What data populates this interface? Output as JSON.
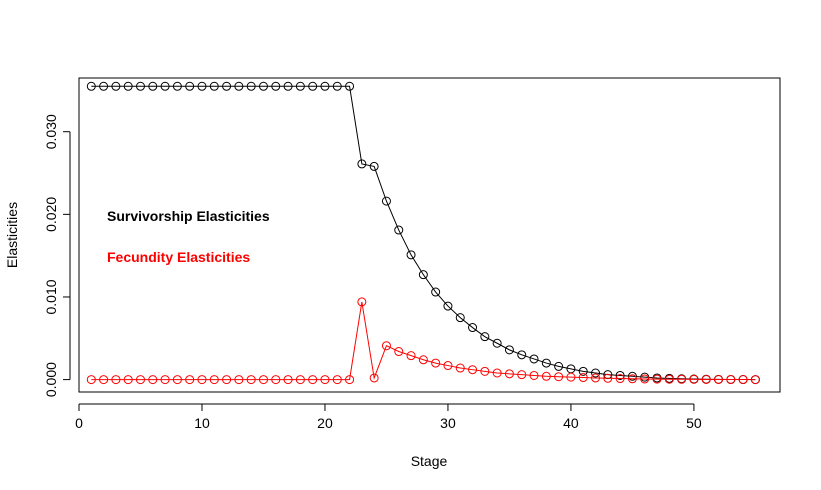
{
  "chart_data": {
    "type": "line",
    "title": "",
    "xlabel": "Stage",
    "ylabel": "Elasticities",
    "xlim": [
      0,
      57
    ],
    "ylim": [
      -0.0015,
      0.0365
    ],
    "xticks": [
      0,
      10,
      20,
      30,
      40,
      50
    ],
    "yticks": [
      0.0,
      0.01,
      0.02,
      0.03
    ],
    "xtick_labels": [
      "0",
      "10",
      "20",
      "30",
      "40",
      "50"
    ],
    "ytick_labels": [
      "0.000",
      "0.010",
      "0.020",
      "0.030"
    ],
    "grid": false,
    "annotations": [
      {
        "text": "Survivorship Elasticities",
        "color": "#000000"
      },
      {
        "text": "Fecundity Elasticities",
        "color": "#ff0000"
      }
    ],
    "x": [
      1,
      2,
      3,
      4,
      5,
      6,
      7,
      8,
      9,
      10,
      11,
      12,
      13,
      14,
      15,
      16,
      17,
      18,
      19,
      20,
      21,
      22,
      23,
      24,
      25,
      26,
      27,
      28,
      29,
      30,
      31,
      32,
      33,
      34,
      35,
      36,
      37,
      38,
      39,
      40,
      41,
      42,
      43,
      44,
      45,
      46,
      47,
      48,
      49,
      50,
      51,
      52,
      53,
      54,
      55
    ],
    "series": [
      {
        "color": "#000000",
        "values": [
          0.0355,
          0.0355,
          0.0355,
          0.0355,
          0.0355,
          0.0355,
          0.0355,
          0.0355,
          0.0355,
          0.0355,
          0.0355,
          0.0355,
          0.0355,
          0.0355,
          0.0355,
          0.0355,
          0.0355,
          0.0355,
          0.0355,
          0.0355,
          0.0355,
          0.0355,
          0.0261,
          0.0258,
          0.0216,
          0.0181,
          0.0151,
          0.0127,
          0.0106,
          0.0089,
          0.0075,
          0.0063,
          0.0052,
          0.0044,
          0.0036,
          0.003,
          0.0025,
          0.002,
          0.0016,
          0.0013,
          0.001,
          0.0008,
          0.0006,
          0.0005,
          0.0004,
          0.0003,
          0.0002,
          0.00015,
          0.0001,
          7e-05,
          5e-05,
          3e-05,
          2e-05,
          1e-05,
          0.0
        ]
      },
      {
        "color": "#ff0000",
        "values": [
          0.0,
          0.0,
          0.0,
          0.0,
          0.0,
          0.0,
          0.0,
          0.0,
          0.0,
          0.0,
          0.0,
          0.0,
          0.0,
          0.0,
          0.0,
          0.0,
          0.0,
          0.0,
          0.0,
          0.0,
          0.0,
          0.0,
          0.0094,
          0.0002,
          0.0041,
          0.0034,
          0.0029,
          0.0024,
          0.002,
          0.0017,
          0.0014,
          0.0012,
          0.001,
          0.0008,
          0.0007,
          0.0006,
          0.0005,
          0.0004,
          0.00035,
          0.0003,
          0.00025,
          0.0002,
          0.00016,
          0.00013,
          0.0001,
          8e-05,
          6e-05,
          5e-05,
          4e-05,
          3e-05,
          2e-05,
          2e-05,
          1e-05,
          1e-05,
          0.0
        ]
      }
    ]
  }
}
